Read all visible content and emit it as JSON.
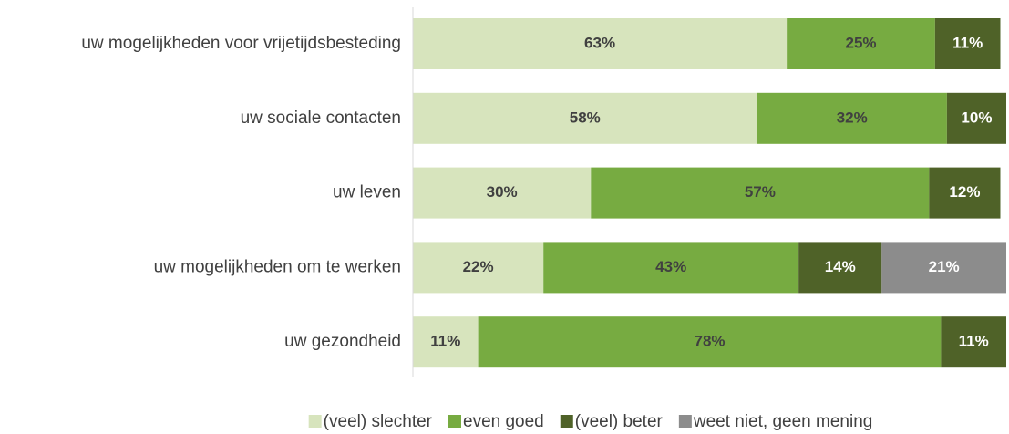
{
  "chart_data": {
    "type": "stacked-bar-horizontal",
    "categories": [
      "uw mogelijkheden voor vrijetijdsbesteding",
      "uw sociale contacten",
      "uw leven",
      "uw mogelijkheden om te werken",
      "uw gezondheid"
    ],
    "series": [
      {
        "name": "(veel) slechter",
        "color": "#d7e4bd",
        "values": [
          63,
          58,
          30,
          22,
          11
        ],
        "value_labels": [
          "63%",
          "58%",
          "30%",
          "22%",
          "11%"
        ]
      },
      {
        "name": "even goed",
        "color": "#77ab41",
        "values": [
          25,
          32,
          57,
          43,
          78
        ],
        "value_labels": [
          "25%",
          "32%",
          "57%",
          "43%",
          "78%"
        ]
      },
      {
        "name": "(veel) beter",
        "color": "#4f6228",
        "values": [
          11,
          10,
          12,
          14,
          11
        ],
        "value_labels": [
          "11%",
          "10%",
          "12%",
          "14%",
          "11%"
        ]
      },
      {
        "name": "weet niet, geen mening",
        "color": "#8c8c8c",
        "values": [
          null,
          null,
          null,
          21,
          null
        ],
        "value_labels": [
          null,
          null,
          null,
          "21%",
          null
        ]
      }
    ],
    "legend": "bottom"
  }
}
